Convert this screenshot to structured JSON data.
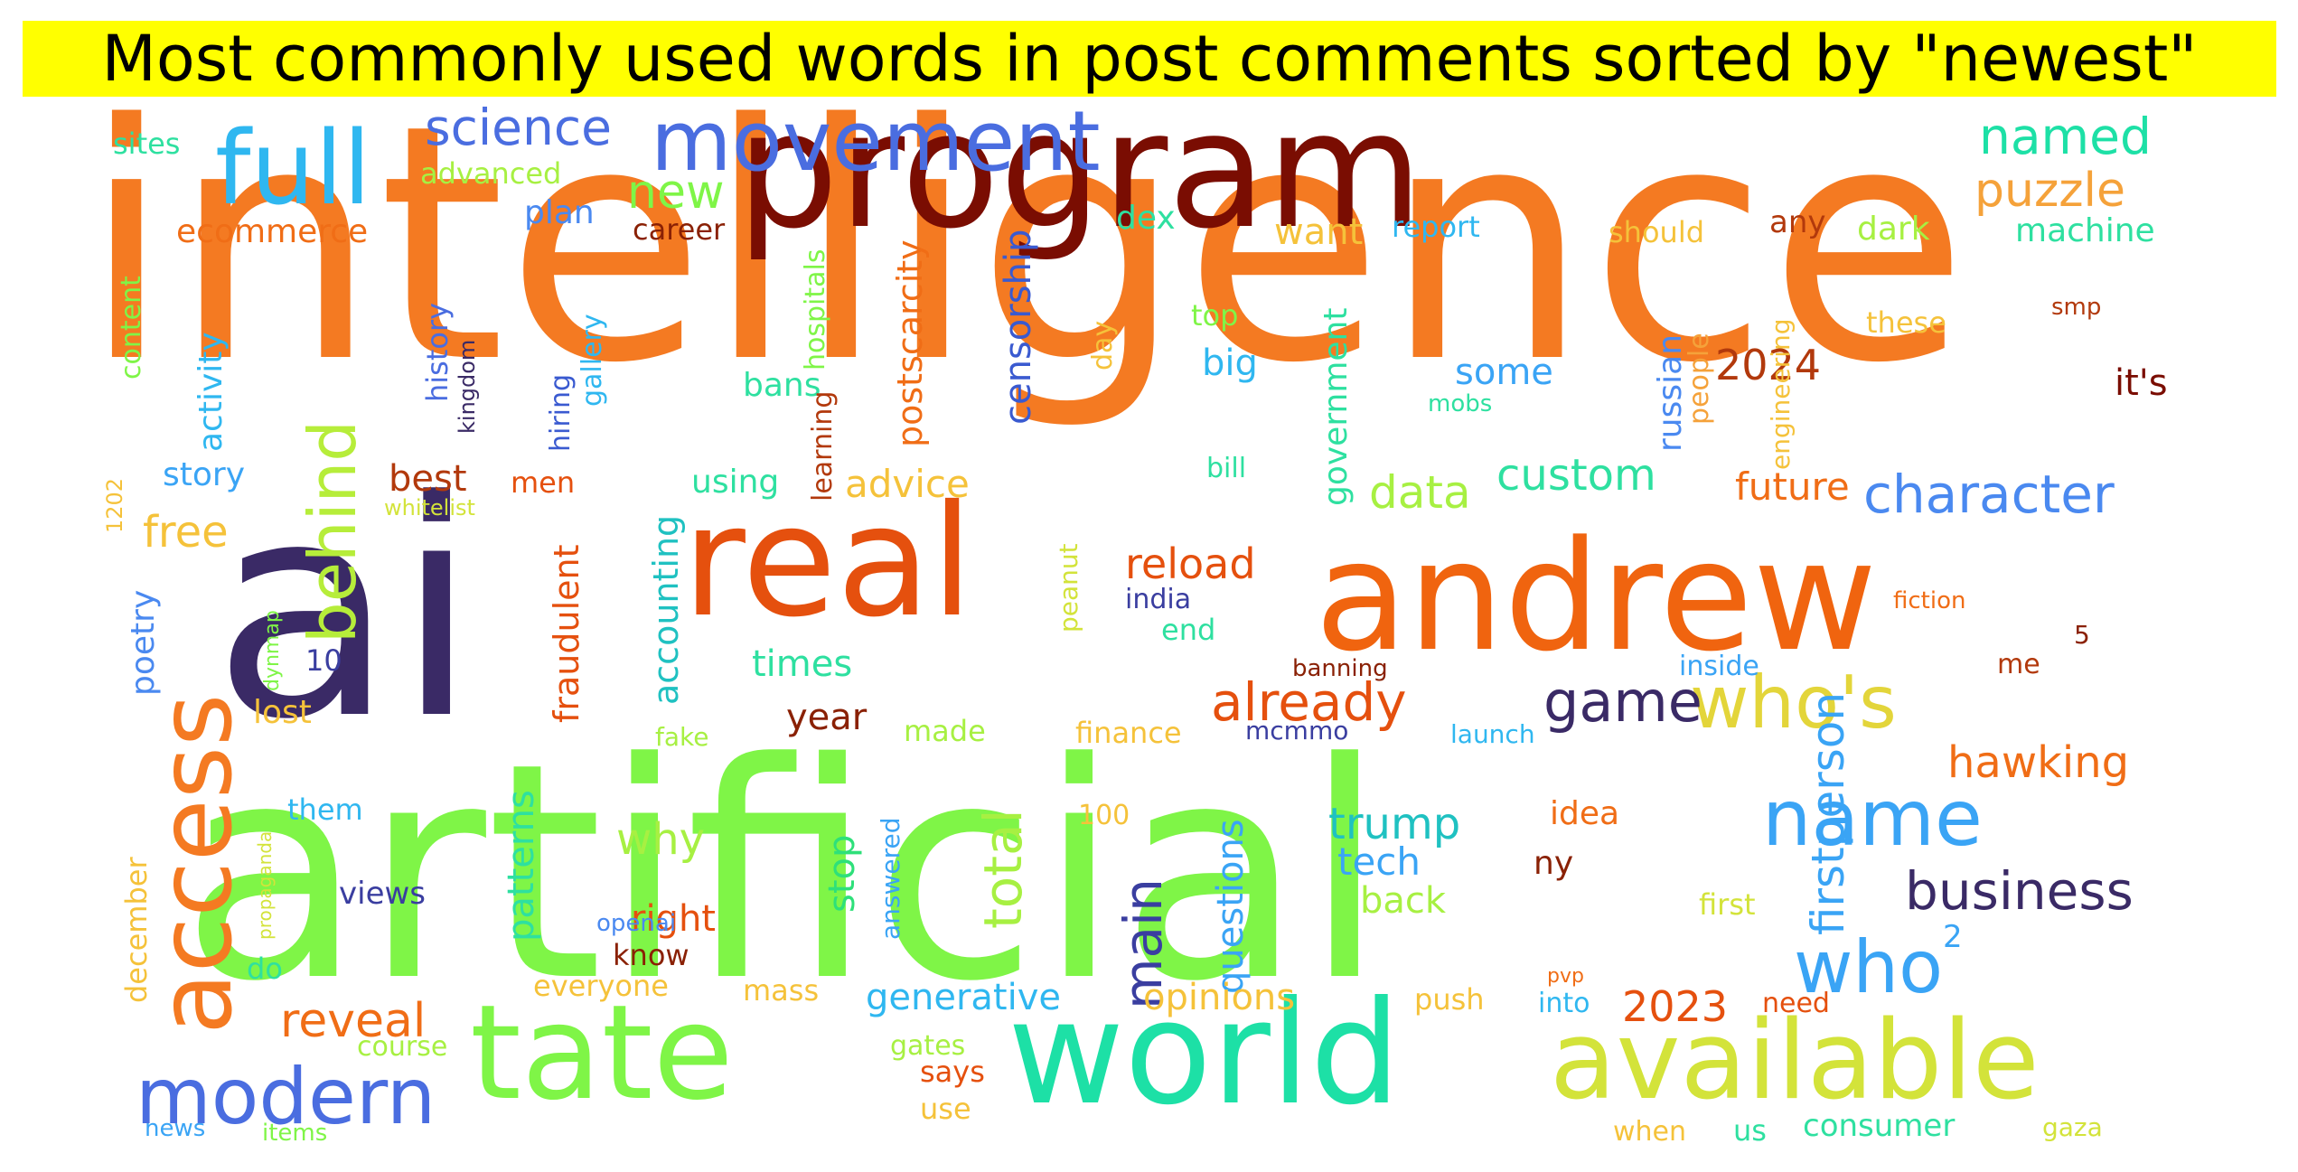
{
  "title": "Most commonly used words in post comments sorted by \"newest\"",
  "chart_data": {
    "type": "wordcloud",
    "title": "Most commonly used words in post comments sorted by \"newest\"",
    "words": [
      {
        "text": "intelligence",
        "weight": 100,
        "color": "#f47a22"
      },
      {
        "text": "artificial",
        "weight": 94,
        "color": "#7ff547"
      },
      {
        "text": "ai",
        "weight": 78,
        "color": "#3a2a66"
      },
      {
        "text": "program",
        "weight": 48,
        "color": "#7a0d02"
      },
      {
        "text": "andrew",
        "weight": 46,
        "color": "#f0640f"
      },
      {
        "text": "real",
        "weight": 44,
        "color": "#e5500e"
      },
      {
        "text": "world",
        "weight": 42,
        "color": "#1de0a6"
      },
      {
        "text": "tate",
        "weight": 40,
        "color": "#7ff547"
      },
      {
        "text": "available",
        "weight": 32,
        "color": "#d3e33a"
      },
      {
        "text": "access",
        "weight": 30,
        "color": "#f47a22"
      },
      {
        "text": "full",
        "weight": 28,
        "color": "#2fb7f0"
      },
      {
        "text": "movement",
        "weight": 24,
        "color": "#4a6de0"
      },
      {
        "text": "name",
        "weight": 20,
        "color": "#3aa4f5"
      },
      {
        "text": "modern",
        "weight": 20,
        "color": "#4a6de0"
      },
      {
        "text": "who's",
        "weight": 20,
        "color": "#e3d53a"
      },
      {
        "text": "who",
        "weight": 20,
        "color": "#3aa4f5"
      },
      {
        "text": "behind",
        "weight": 18,
        "color": "#b6ed3a"
      },
      {
        "text": "character",
        "weight": 14,
        "color": "#4a89f0"
      },
      {
        "text": "game",
        "weight": 14,
        "color": "#3a2a66"
      },
      {
        "text": "business",
        "weight": 14,
        "color": "#3a2a66"
      },
      {
        "text": "already",
        "weight": 14,
        "color": "#e5500e"
      },
      {
        "text": "main",
        "weight": 14,
        "color": "#3a3ea0"
      },
      {
        "text": "total",
        "weight": 14,
        "color": "#a7f042"
      },
      {
        "text": "science",
        "weight": 12,
        "color": "#4a6de0"
      },
      {
        "text": "named",
        "weight": 12,
        "color": "#1de0a6"
      },
      {
        "text": "puzzle",
        "weight": 12,
        "color": "#f5a23a"
      },
      {
        "text": "firstperson",
        "weight": 12,
        "color": "#3aa4f5"
      },
      {
        "text": "data",
        "weight": 12,
        "color": "#a7f042"
      },
      {
        "text": "custom",
        "weight": 11,
        "color": "#2ee0a0"
      },
      {
        "text": "reveal",
        "weight": 12,
        "color": "#f06d16"
      },
      {
        "text": "hawking",
        "weight": 11,
        "color": "#f06d16"
      },
      {
        "text": "new",
        "weight": 12,
        "color": "#7ff547"
      },
      {
        "text": "free",
        "weight": 11,
        "color": "#f5c23a"
      },
      {
        "text": "2024",
        "weight": 11,
        "color": "#b2390c"
      },
      {
        "text": "2023",
        "weight": 11,
        "color": "#e5500e"
      },
      {
        "text": "trump",
        "weight": 11,
        "color": "#1fc1c1"
      },
      {
        "text": "why",
        "weight": 11,
        "color": "#a7f042"
      },
      {
        "text": "reload",
        "weight": 11,
        "color": "#e5500e"
      },
      {
        "text": "tech",
        "weight": 9,
        "color": "#3aa4f5"
      },
      {
        "text": "want",
        "weight": 9,
        "color": "#f5c23a"
      },
      {
        "text": "censorship",
        "weight": 9,
        "color": "#3a5ad0"
      },
      {
        "text": "questions",
        "weight": 9,
        "color": "#3aa4f5"
      },
      {
        "text": "stop",
        "weight": 9,
        "color": "#2ee07a"
      },
      {
        "text": "patterns",
        "weight": 9,
        "color": "#2ee0a0"
      },
      {
        "text": "fraudulent",
        "weight": 9,
        "color": "#e5500e"
      },
      {
        "text": "accounting",
        "weight": 9,
        "color": "#1fc1c1"
      },
      {
        "text": "postscarcity",
        "weight": 9,
        "color": "#f06d16"
      },
      {
        "text": "government",
        "weight": 8,
        "color": "#2ee0a0"
      },
      {
        "text": "russian",
        "weight": 8,
        "color": "#4a89f0"
      },
      {
        "text": "advice",
        "weight": 8,
        "color": "#f5c23a"
      },
      {
        "text": "best",
        "weight": 8,
        "color": "#b2390c"
      },
      {
        "text": "future",
        "weight": 8,
        "color": "#f06d16"
      },
      {
        "text": "big",
        "weight": 8,
        "color": "#2fb7f0"
      },
      {
        "text": "some",
        "weight": 8,
        "color": "#3aa4f5"
      },
      {
        "text": "back",
        "weight": 8,
        "color": "#a7f042"
      },
      {
        "text": "right",
        "weight": 8,
        "color": "#e5500e"
      },
      {
        "text": "year",
        "weight": 8,
        "color": "#8a2105"
      },
      {
        "text": "times",
        "weight": 8,
        "color": "#2ee0a0"
      },
      {
        "text": "it's",
        "weight": 8,
        "color": "#7a0d02"
      },
      {
        "text": "generative",
        "weight": 8,
        "color": "#2fb7f0"
      },
      {
        "text": "opinions",
        "weight": 8,
        "color": "#f5c23a"
      },
      {
        "text": "using",
        "weight": 7,
        "color": "#2ee0a0"
      },
      {
        "text": "story",
        "weight": 7,
        "color": "#3aa4f5"
      },
      {
        "text": "lost",
        "weight": 7,
        "color": "#f5c23a"
      },
      {
        "text": "poetry",
        "weight": 7,
        "color": "#4a89f0"
      },
      {
        "text": "activity",
        "weight": 7,
        "color": "#2fb7f0"
      },
      {
        "text": "history",
        "weight": 7,
        "color": "#4a6de0"
      },
      {
        "text": "ecommerce",
        "weight": 7,
        "color": "#f06d16"
      },
      {
        "text": "plan",
        "weight": 7,
        "color": "#4a89f0"
      },
      {
        "text": "career",
        "weight": 7,
        "color": "#8a2105"
      },
      {
        "text": "december",
        "weight": 7,
        "color": "#f5c23a"
      },
      {
        "text": "machine",
        "weight": 7,
        "color": "#2ee0a0"
      },
      {
        "text": "dark",
        "weight": 7,
        "color": "#a7f042"
      },
      {
        "text": "dex",
        "weight": 7,
        "color": "#2ee0a0"
      },
      {
        "text": "report",
        "weight": 6,
        "color": "#2fb7f0"
      },
      {
        "text": "should",
        "weight": 6,
        "color": "#f5c23a"
      },
      {
        "text": "any",
        "weight": 7,
        "color": "#b2390c"
      },
      {
        "text": "advanced",
        "weight": 7,
        "color": "#a7f042"
      },
      {
        "text": "sites",
        "weight": 7,
        "color": "#2ee0a0"
      },
      {
        "text": "content",
        "weight": 6,
        "color": "#7ff547"
      },
      {
        "text": "hiring",
        "weight": 6,
        "color": "#3a5ad0"
      },
      {
        "text": "gallery",
        "weight": 6,
        "color": "#2fb7f0"
      },
      {
        "text": "hospitals",
        "weight": 6,
        "color": "#7ff547"
      },
      {
        "text": "bans",
        "weight": 7,
        "color": "#2ee0a0"
      },
      {
        "text": "learning",
        "weight": 6,
        "color": "#b2390c"
      },
      {
        "text": "engineering",
        "weight": 6,
        "color": "#f5c23a"
      },
      {
        "text": "people",
        "weight": 6,
        "color": "#f5a23a"
      },
      {
        "text": "day",
        "weight": 6,
        "color": "#f5c23a"
      },
      {
        "text": "top",
        "weight": 6,
        "color": "#7ff547"
      },
      {
        "text": "these",
        "weight": 6,
        "color": "#f5c23a"
      },
      {
        "text": "men",
        "weight": 6,
        "color": "#e5500e"
      },
      {
        "text": "end",
        "weight": 6,
        "color": "#2ee0a0"
      },
      {
        "text": "india",
        "weight": 6,
        "color": "#3a3ea0"
      },
      {
        "text": "peanut",
        "weight": 6,
        "color": "#d3e33a"
      },
      {
        "text": "10",
        "weight": 6,
        "color": "#3a3ea0"
      },
      {
        "text": "made",
        "weight": 6,
        "color": "#a7f042"
      },
      {
        "text": "finance",
        "weight": 6,
        "color": "#f5c23a"
      },
      {
        "text": "inside",
        "weight": 6,
        "color": "#3aa4f5"
      },
      {
        "text": "me",
        "weight": 6,
        "color": "#b2390c"
      },
      {
        "text": "idea",
        "weight": 6,
        "color": "#f06d16"
      },
      {
        "text": "ny",
        "weight": 6,
        "color": "#8a2105"
      },
      {
        "text": "them",
        "weight": 6,
        "color": "#2fb7f0"
      },
      {
        "text": "views",
        "weight": 6,
        "color": "#3a3ea0"
      },
      {
        "text": "100",
        "weight": 5,
        "color": "#f5c23a"
      },
      {
        "text": "first",
        "weight": 6,
        "color": "#d3e33a"
      },
      {
        "text": "know",
        "weight": 6,
        "color": "#8a2105"
      },
      {
        "text": "says",
        "weight": 6,
        "color": "#e5500e"
      },
      {
        "text": "use",
        "weight": 6,
        "color": "#f5c23a"
      },
      {
        "text": "do",
        "weight": 6,
        "color": "#2ee0a0"
      },
      {
        "text": "everyone",
        "weight": 6,
        "color": "#f5c23a"
      },
      {
        "text": "mass",
        "weight": 6,
        "color": "#f5c23a"
      },
      {
        "text": "push",
        "weight": 6,
        "color": "#f5c23a"
      },
      {
        "text": "into",
        "weight": 5,
        "color": "#2fb7f0"
      },
      {
        "text": "need",
        "weight": 6,
        "color": "#e5500e"
      },
      {
        "text": "course",
        "weight": 6,
        "color": "#a7f042"
      },
      {
        "text": "gates",
        "weight": 6,
        "color": "#a7f042"
      },
      {
        "text": "us",
        "weight": 6,
        "color": "#2ee0a0"
      },
      {
        "text": "consumer",
        "weight": 6,
        "color": "#2ee0a0"
      },
      {
        "text": "when",
        "weight": 6,
        "color": "#f5c23a"
      },
      {
        "text": "gaza",
        "weight": 5,
        "color": "#d3e33a"
      },
      {
        "text": "answered",
        "weight": 5,
        "color": "#3aa4f5"
      },
      {
        "text": "2",
        "weight": 6,
        "color": "#3aa4f5"
      },
      {
        "text": "5",
        "weight": 5,
        "color": "#8a2105"
      },
      {
        "text": "bill",
        "weight": 5,
        "color": "#2ee0a0"
      },
      {
        "text": "fiction",
        "weight": 5,
        "color": "#f06d16"
      },
      {
        "text": "banning",
        "weight": 5,
        "color": "#8a2105"
      },
      {
        "text": "mcmmo",
        "weight": 5,
        "color": "#3a3ea0"
      },
      {
        "text": "launch",
        "weight": 5,
        "color": "#2fb7f0"
      },
      {
        "text": "fake",
        "weight": 5,
        "color": "#a7f042"
      },
      {
        "text": "openai",
        "weight": 5,
        "color": "#4a89f0"
      },
      {
        "text": "pvp",
        "weight": 4,
        "color": "#f06d16"
      },
      {
        "text": "news",
        "weight": 5,
        "color": "#3aa4f5"
      },
      {
        "text": "items",
        "weight": 5,
        "color": "#7ff547"
      },
      {
        "text": "smp",
        "weight": 5,
        "color": "#b2390c"
      },
      {
        "text": "mobs",
        "weight": 5,
        "color": "#2ee0a0"
      },
      {
        "text": "kingdom",
        "weight": 4,
        "color": "#3a2a66"
      },
      {
        "text": "1202",
        "weight": 4,
        "color": "#f5c23a"
      },
      {
        "text": "whitelist",
        "weight": 4,
        "color": "#d3e33a"
      },
      {
        "text": "dynmap",
        "weight": 4,
        "color": "#7ff547"
      },
      {
        "text": "propaganda",
        "weight": 4,
        "color": "#d3e33a"
      }
    ]
  }
}
